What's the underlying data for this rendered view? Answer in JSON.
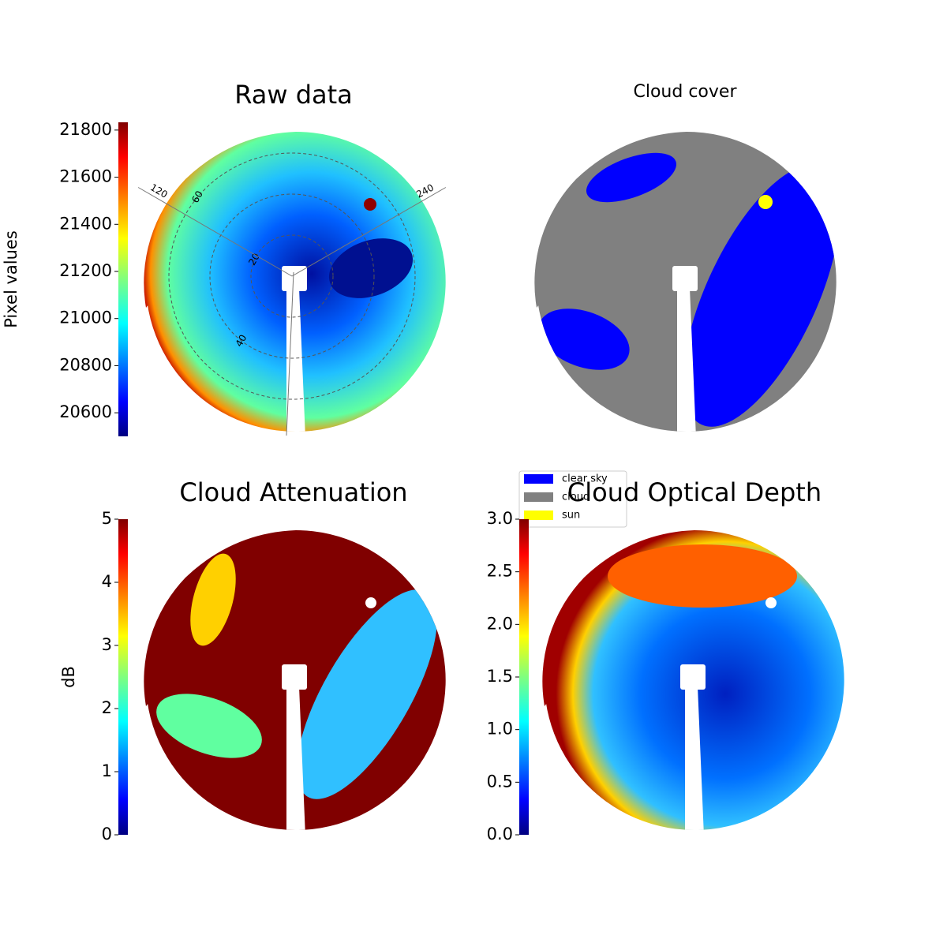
{
  "chart_data": [
    {
      "type": "image",
      "title": "Raw data",
      "ylabel": "Pixel values",
      "colormap": "jet",
      "ylim": [
        20500,
        21833
      ],
      "yticks": [
        20600,
        20800,
        21000,
        21200,
        21400,
        21600,
        21800
      ],
      "polar": {
        "angle_ticks": [
          120,
          240
        ],
        "radius_ticks": [
          20,
          40,
          60
        ]
      }
    },
    {
      "type": "image",
      "title": "Cloud cover",
      "legend": [
        {
          "label": "clear sky",
          "color": "#0000ff"
        },
        {
          "label": "cloud",
          "color": "#808080"
        },
        {
          "label": "sun",
          "color": "#ffff00"
        }
      ]
    },
    {
      "type": "image",
      "title": "Cloud Attenuation",
      "ylabel": "dB",
      "colormap": "jet",
      "ylim": [
        0,
        5
      ],
      "yticks": [
        0,
        1,
        2,
        3,
        4,
        5
      ]
    },
    {
      "type": "image",
      "title": "Cloud Optical Depth",
      "colormap": "jet",
      "ylim": [
        0,
        3
      ],
      "yticks": [
        {
          "value": 0,
          "label": "0.0"
        },
        {
          "value": 0.5,
          "label": "0.5"
        },
        {
          "value": 1,
          "label": "1.0"
        },
        {
          "value": 1.5,
          "label": "1.5"
        },
        {
          "value": 2,
          "label": "2.0"
        },
        {
          "value": 2.5,
          "label": "2.5"
        },
        {
          "value": 3,
          "label": "3.0"
        }
      ]
    }
  ]
}
